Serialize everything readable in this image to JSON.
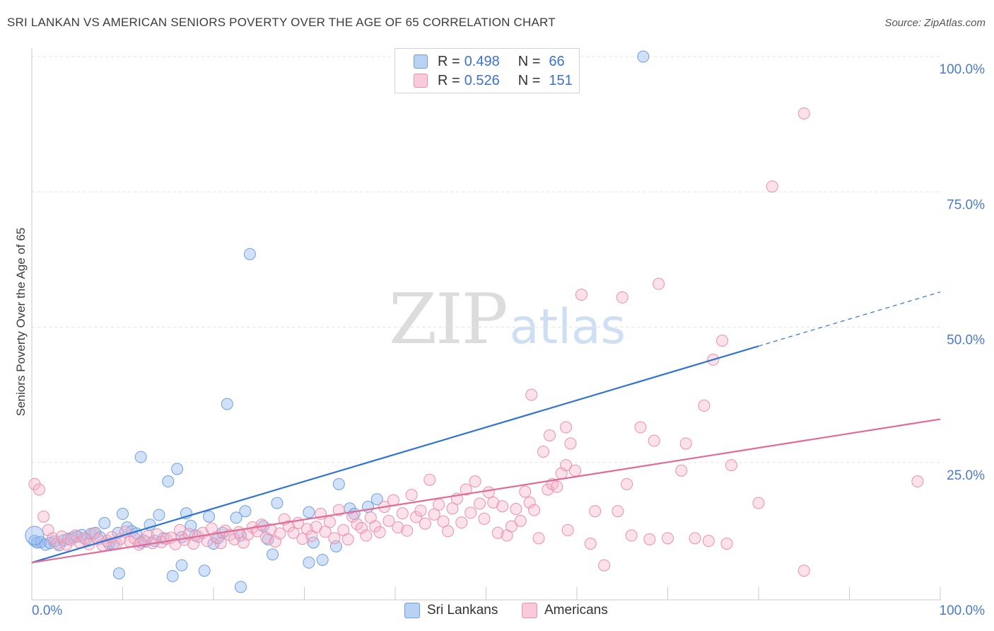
{
  "title": "SRI LANKAN VS AMERICAN SENIORS POVERTY OVER THE AGE OF 65 CORRELATION CHART",
  "source": "Source: ZipAtlas.com",
  "watermark": {
    "zip": "ZIP",
    "atlas": "atlas"
  },
  "legend": {
    "rows": [
      {
        "r_label": "R =",
        "r_value": "0.498",
        "n_label": "N =",
        "n_value": "66",
        "color": "#6f9fe0",
        "fill": "#b9d2f3"
      },
      {
        "r_label": "R =",
        "r_value": "0.526",
        "n_label": "N =",
        "n_value": "151",
        "color": "#ee8fac",
        "fill": "#f9cad9"
      }
    ]
  },
  "bottom_legend": [
    "Sri Lankans",
    "Americans"
  ],
  "chart_data": {
    "type": "scatter",
    "title": "SRI LANKAN VS AMERICAN SENIORS POVERTY OVER THE AGE OF 65 CORRELATION CHART",
    "ylabel": "Seniors Poverty Over the Age of 65",
    "xlabel": "",
    "xlim": [
      0,
      100
    ],
    "ylim": [
      0,
      102
    ],
    "x_tick_labels": [
      "0.0%",
      "100.0%"
    ],
    "y_ticks": [
      25,
      50,
      75,
      100
    ],
    "y_tick_labels": [
      "25.0%",
      "50.0%",
      "75.0%",
      "100.0%"
    ],
    "grid": true,
    "legend_position": "top-center",
    "colors": {
      "sri_lankans": "#5b8fd9",
      "americans": "#ea87a8",
      "blue_line": "#2f74d0",
      "pink_line": "#e26a95",
      "tick_text": "#4a7bd0"
    },
    "series": [
      {
        "name": "Sri Lankans",
        "r": 0.498,
        "n": 66,
        "trend": {
          "x0": 0,
          "y0": 6.5,
          "x1": 80,
          "y1": 46.5,
          "dash_x1": 100,
          "dash_y1": 56.5
        },
        "points": [
          [
            0.3,
            10.5
          ],
          [
            0.6,
            10.2
          ],
          [
            1.0,
            10.3
          ],
          [
            1.5,
            9.8
          ],
          [
            2.0,
            10.1
          ],
          [
            2.5,
            10.4
          ],
          [
            3.0,
            9.7
          ],
          [
            3.5,
            10.6
          ],
          [
            4.0,
            10.9
          ],
          [
            4.5,
            11.1
          ],
          [
            5.0,
            11.3
          ],
          [
            5.5,
            11.6
          ],
          [
            6.0,
            10.8
          ],
          [
            6.5,
            11.8
          ],
          [
            7.0,
            12.0
          ],
          [
            7.5,
            11.2
          ],
          [
            8.0,
            13.8
          ],
          [
            8.5,
            10.0
          ],
          [
            9.0,
            9.9
          ],
          [
            9.5,
            12.0
          ],
          [
            10.0,
            15.5
          ],
          [
            10.5,
            13.0
          ],
          [
            11.0,
            12.3
          ],
          [
            11.5,
            11.9
          ],
          [
            12.0,
            10.2
          ],
          [
            12.5,
            10.4
          ],
          [
            13.0,
            13.5
          ],
          [
            13.5,
            10.5
          ],
          [
            14.0,
            15.3
          ],
          [
            14.5,
            11.0
          ],
          [
            15.0,
            21.5
          ],
          [
            16.0,
            23.8
          ],
          [
            16.5,
            11.2
          ],
          [
            17.0,
            15.6
          ],
          [
            17.5,
            13.3
          ],
          [
            18.0,
            11.5
          ],
          [
            19.5,
            15.0
          ],
          [
            20.0,
            10.0
          ],
          [
            20.5,
            11.0
          ],
          [
            21.0,
            12.0
          ],
          [
            21.5,
            35.8
          ],
          [
            22.5,
            14.8
          ],
          [
            23.5,
            16.0
          ],
          [
            24.0,
            63.5
          ],
          [
            25.5,
            13.2
          ],
          [
            26.0,
            10.8
          ],
          [
            27.0,
            17.5
          ],
          [
            30.5,
            15.8
          ],
          [
            31.0,
            10.2
          ],
          [
            33.5,
            9.5
          ],
          [
            33.8,
            21.0
          ],
          [
            35.0,
            16.5
          ],
          [
            35.5,
            15.5
          ],
          [
            37.0,
            16.8
          ],
          [
            38.0,
            18.2
          ],
          [
            67.3,
            100.0
          ],
          [
            12.0,
            26.0
          ],
          [
            9.6,
            4.5
          ],
          [
            15.5,
            4.0
          ],
          [
            16.5,
            6.0
          ],
          [
            19.0,
            5.0
          ],
          [
            23.0,
            2.0
          ],
          [
            26.5,
            8.0
          ],
          [
            30.5,
            6.5
          ],
          [
            32.0,
            7.0
          ],
          [
            23.0,
            11.5
          ]
        ]
      },
      {
        "name": "Americans",
        "r": 0.526,
        "n": 151,
        "trend": {
          "x0": 0,
          "y0": 6.5,
          "x1": 100,
          "y1": 33.0
        },
        "points": [
          [
            0.3,
            21.0
          ],
          [
            0.8,
            20.0
          ],
          [
            1.3,
            15.0
          ],
          [
            1.8,
            12.5
          ],
          [
            2.3,
            11.0
          ],
          [
            2.8,
            10.0
          ],
          [
            3.3,
            11.3
          ],
          [
            3.8,
            9.8
          ],
          [
            4.3,
            10.7
          ],
          [
            4.8,
            11.5
          ],
          [
            5.3,
            10.2
          ],
          [
            5.8,
            11.0
          ],
          [
            6.3,
            9.9
          ],
          [
            6.8,
            11.9
          ],
          [
            7.3,
            10.8
          ],
          [
            7.8,
            9.7
          ],
          [
            8.3,
            10.5
          ],
          [
            8.8,
            11.2
          ],
          [
            9.3,
            10.0
          ],
          [
            9.8,
            10.9
          ],
          [
            10.3,
            12.2
          ],
          [
            10.8,
            10.4
          ],
          [
            11.3,
            11.0
          ],
          [
            11.8,
            9.8
          ],
          [
            12.3,
            10.6
          ],
          [
            12.8,
            11.4
          ],
          [
            13.3,
            10.1
          ],
          [
            13.8,
            11.7
          ],
          [
            14.3,
            10.3
          ],
          [
            14.8,
            10.9
          ],
          [
            15.3,
            11.1
          ],
          [
            15.8,
            9.9
          ],
          [
            16.3,
            12.5
          ],
          [
            16.8,
            10.7
          ],
          [
            17.3,
            11.8
          ],
          [
            17.8,
            10.0
          ],
          [
            18.3,
            11.3
          ],
          [
            18.8,
            12.0
          ],
          [
            19.3,
            10.5
          ],
          [
            19.8,
            12.8
          ],
          [
            20.3,
            11.2
          ],
          [
            20.8,
            10.1
          ],
          [
            21.3,
            12.4
          ],
          [
            21.8,
            11.6
          ],
          [
            22.3,
            10.8
          ],
          [
            22.8,
            12.1
          ],
          [
            23.3,
            10.2
          ],
          [
            23.8,
            11.7
          ],
          [
            24.3,
            13.0
          ],
          [
            24.8,
            12.3
          ],
          [
            25.3,
            13.5
          ],
          [
            25.8,
            11.1
          ],
          [
            26.3,
            12.6
          ],
          [
            26.8,
            10.4
          ],
          [
            27.3,
            11.9
          ],
          [
            27.8,
            14.5
          ],
          [
            28.3,
            13.2
          ],
          [
            28.8,
            12.0
          ],
          [
            29.3,
            13.8
          ],
          [
            29.8,
            10.9
          ],
          [
            30.3,
            12.7
          ],
          [
            30.8,
            11.4
          ],
          [
            31.3,
            13.1
          ],
          [
            31.8,
            15.5
          ],
          [
            32.3,
            12.2
          ],
          [
            32.8,
            14.0
          ],
          [
            33.3,
            11.0
          ],
          [
            33.8,
            16.2
          ],
          [
            34.3,
            12.5
          ],
          [
            34.8,
            10.8
          ],
          [
            35.3,
            15.0
          ],
          [
            35.8,
            13.6
          ],
          [
            36.3,
            12.9
          ],
          [
            36.8,
            11.5
          ],
          [
            37.3,
            14.8
          ],
          [
            37.8,
            13.2
          ],
          [
            38.3,
            12.1
          ],
          [
            38.8,
            16.8
          ],
          [
            39.3,
            14.2
          ],
          [
            39.8,
            18.0
          ],
          [
            40.3,
            13.0
          ],
          [
            40.8,
            15.6
          ],
          [
            41.3,
            12.4
          ],
          [
            41.8,
            19.0
          ],
          [
            42.3,
            14.9
          ],
          [
            42.8,
            16.1
          ],
          [
            43.3,
            13.7
          ],
          [
            43.8,
            21.8
          ],
          [
            44.3,
            15.4
          ],
          [
            44.8,
            17.2
          ],
          [
            45.3,
            14.1
          ],
          [
            45.8,
            12.3
          ],
          [
            46.3,
            16.5
          ],
          [
            46.8,
            18.3
          ],
          [
            47.3,
            13.9
          ],
          [
            47.8,
            20.0
          ],
          [
            48.3,
            15.7
          ],
          [
            48.8,
            21.5
          ],
          [
            49.3,
            17.4
          ],
          [
            49.8,
            14.6
          ],
          [
            50.3,
            19.5
          ],
          [
            50.8,
            17.6
          ],
          [
            51.3,
            12.0
          ],
          [
            51.8,
            16.9
          ],
          [
            52.3,
            11.5
          ],
          [
            52.8,
            13.2
          ],
          [
            53.3,
            16.4
          ],
          [
            53.8,
            14.2
          ],
          [
            54.3,
            19.6
          ],
          [
            54.8,
            17.6
          ],
          [
            55.3,
            16.2
          ],
          [
            55.8,
            11.0
          ],
          [
            56.3,
            27.0
          ],
          [
            56.8,
            20.0
          ],
          [
            57.3,
            21.0
          ],
          [
            57.8,
            20.5
          ],
          [
            58.3,
            23.0
          ],
          [
            58.8,
            24.5
          ],
          [
            59.3,
            28.5
          ],
          [
            59.8,
            23.5
          ],
          [
            55.0,
            37.5
          ],
          [
            57.0,
            30.0
          ],
          [
            58.8,
            31.5
          ],
          [
            60.5,
            56.0
          ],
          [
            65.0,
            55.5
          ],
          [
            67.0,
            31.5
          ],
          [
            69.0,
            58.0
          ],
          [
            71.5,
            23.5
          ],
          [
            74.0,
            35.5
          ],
          [
            76.0,
            47.5
          ],
          [
            77.0,
            24.5
          ],
          [
            80.0,
            17.5
          ],
          [
            81.5,
            76.0
          ],
          [
            85.0,
            89.5
          ],
          [
            97.5,
            21.5
          ],
          [
            85.0,
            5.0
          ],
          [
            63.0,
            6.0
          ],
          [
            61.5,
            10.0
          ],
          [
            68.5,
            29.0
          ],
          [
            72.0,
            28.5
          ],
          [
            62.0,
            16.0
          ],
          [
            66.0,
            11.5
          ],
          [
            70.0,
            11.0
          ],
          [
            74.5,
            10.5
          ],
          [
            76.5,
            10.0
          ],
          [
            68.0,
            10.8
          ],
          [
            73.0,
            11.0
          ],
          [
            75.0,
            44.0
          ],
          [
            65.5,
            21.0
          ],
          [
            64.5,
            16.0
          ],
          [
            59.0,
            12.5
          ]
        ]
      }
    ]
  }
}
